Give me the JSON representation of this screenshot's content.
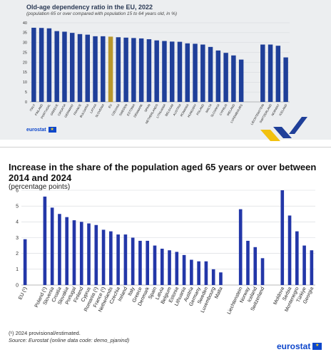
{
  "top_panel": {
    "logo_text": "eurostat"
  },
  "bottom_panel": {
    "title": "Increase in the share of the population aged 65 years or over between 2014 and 2024",
    "subtitle": "(percentage points)",
    "footnote": "(¹) 2024 provisional/estimated.",
    "source": "Source: Eurostat (online data code: demo_pjanind)",
    "logo_text": "eurostat"
  },
  "chart_data": [
    {
      "type": "bar",
      "title": "Old-age dependency ratio in the EU, 2022",
      "subtitle": "(population 65 or over compared with population 15 to 64 years old, in %)",
      "xlabel": "",
      "ylabel": "",
      "ylim": [
        0,
        40
      ],
      "yticks": [
        0,
        5,
        10,
        15,
        20,
        25,
        30,
        35,
        40
      ],
      "grid": true,
      "bar_color": "#1f3f99",
      "highlight_color": "#b8972c",
      "groups": [
        {
          "categories": [
            "Italy",
            "Finland",
            "Portugal",
            "Greece",
            "Croatia",
            "Germany",
            "France",
            "Bulgaria",
            "Latvia",
            "Slovenia",
            "EU",
            "Czechia",
            "Sweden",
            "Estonia",
            "Denmark",
            "Spain",
            "Netherlands",
            "Lithuania",
            "Belgium",
            "Austria",
            "Romania",
            "Hungary",
            "Poland",
            "Malta",
            "Slovakia",
            "Cyprus",
            "Ireland",
            "Luxembourg"
          ],
          "values": [
            37.5,
            37.4,
            37.2,
            35.8,
            35.5,
            34.9,
            34.3,
            34.0,
            33.2,
            33.2,
            33.0,
            32.7,
            32.5,
            32.3,
            32.1,
            31.7,
            31.1,
            30.8,
            30.5,
            30.4,
            29.6,
            29.4,
            29.0,
            27.8,
            26.0,
            24.8,
            23.5,
            21.4
          ],
          "highlight": [
            "EU"
          ]
        },
        {
          "categories": [
            "Liechtenstein",
            "Switzerland",
            "Norway",
            "Iceland"
          ],
          "values": [
            29.0,
            29.0,
            28.4,
            22.5
          ]
        }
      ]
    },
    {
      "type": "bar",
      "title": "Increase in the share of the population aged 65 years or over between 2014 and 2024",
      "subtitle": "(percentage points)",
      "xlabel": "",
      "ylabel": "",
      "ylim": [
        0,
        6
      ],
      "yticks": [
        0,
        1,
        2,
        3,
        4,
        5,
        6
      ],
      "grid": true,
      "bar_color": "#2337a8",
      "groups": [
        {
          "categories": [
            "EU (¹)"
          ],
          "values": [
            2.9
          ]
        },
        {
          "categories": [
            "Poland (¹)",
            "Slovenia",
            "Croatia",
            "Slovakia",
            "Portugal",
            "Finland",
            "Cyprus",
            "Romania (¹)",
            "France (¹)",
            "Netherlands",
            "Czechia",
            "Ireland",
            "Italy",
            "Greece",
            "Denmark",
            "Spain",
            "Latvia",
            "Belgium",
            "Estonia",
            "Lithuania",
            "Austria",
            "Germany",
            "Sweden",
            "Luxembourg",
            "Malta"
          ],
          "values": [
            5.6,
            4.9,
            4.5,
            4.3,
            4.1,
            4.0,
            3.9,
            3.8,
            3.5,
            3.4,
            3.2,
            3.2,
            3.0,
            2.8,
            2.8,
            2.5,
            2.3,
            2.2,
            2.1,
            1.9,
            1.6,
            1.5,
            1.5,
            1.0,
            0.8
          ]
        },
        {
          "categories": [
            "Liechtenstein",
            "Norway",
            "Iceland",
            "Switzerland"
          ],
          "values": [
            4.8,
            2.8,
            2.4,
            1.7
          ]
        },
        {
          "categories": [
            "Moldova",
            "Serbia",
            "Montenegro",
            "Türkiye",
            "Georgia"
          ],
          "values": [
            6.0,
            4.4,
            3.4,
            2.5,
            2.2
          ]
        }
      ]
    }
  ]
}
